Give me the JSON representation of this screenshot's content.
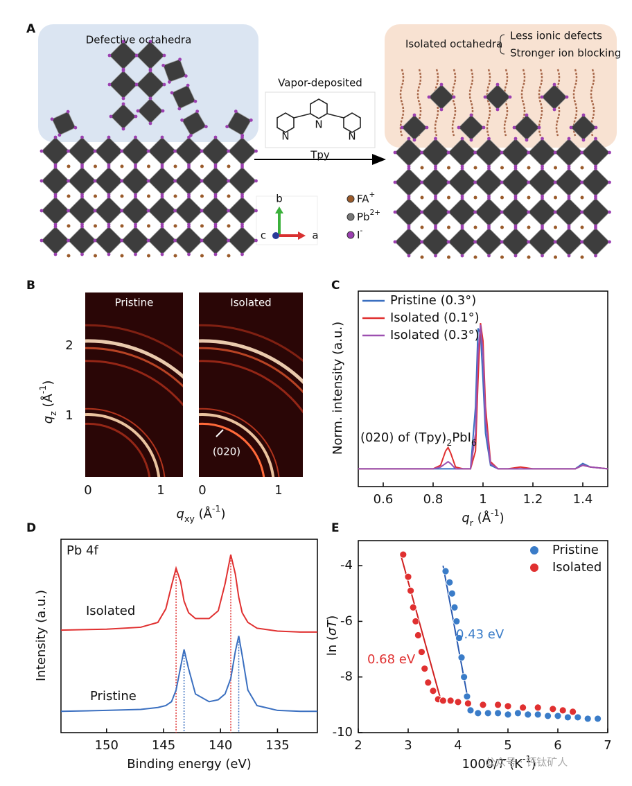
{
  "panel_labels": [
    "A",
    "B",
    "C",
    "D",
    "E"
  ],
  "panel_a": {
    "defective_label": "Defective octahedra",
    "process_label": "Vapor-deposited",
    "molecule_name": "Tpy",
    "atom_labels": [
      "N",
      "N",
      "N"
    ],
    "isolated_label": "Isolated octahedra",
    "benefits": [
      "Less ionic defects",
      "Stronger ion blocking"
    ],
    "axes": [
      "b",
      "c",
      "a"
    ],
    "legend": [
      {
        "parts": [
          [
            "FA",
            "normal"
          ],
          [
            "+",
            "sup"
          ]
        ],
        "color": "#9a5a2a"
      },
      {
        "parts": [
          [
            "Pb",
            "normal"
          ],
          [
            "2+",
            "sup"
          ]
        ],
        "color": "#777777"
      },
      {
        "parts": [
          [
            "I",
            "normal"
          ],
          [
            "-",
            "sup"
          ]
        ],
        "color": "#9b3fb0"
      }
    ]
  },
  "panel_b": {
    "images": [
      "Pristine",
      "Isolated"
    ],
    "annotation": "(020)",
    "xticks": [
      0,
      1
    ],
    "yticks": [
      1,
      2
    ],
    "xlabel": [
      [
        "q",
        "italic"
      ],
      [
        "xy",
        "sub"
      ],
      [
        " (Å",
        "normal"
      ],
      [
        "-1",
        "sup"
      ],
      [
        ")",
        "normal"
      ]
    ],
    "ylabel": [
      [
        "q",
        "italic"
      ],
      [
        "z",
        "sub"
      ],
      [
        " (Å",
        "normal"
      ],
      [
        "-1",
        "sup"
      ],
      [
        ")",
        "normal"
      ]
    ]
  },
  "chart_data": [
    {
      "type": "line",
      "xlabel": [
        [
          "q",
          "italic"
        ],
        [
          "r",
          "sub"
        ],
        [
          " (Å",
          "normal"
        ],
        [
          "-1",
          "sup"
        ],
        [
          ")",
          "normal"
        ]
      ],
      "ylabel": [
        [
          "Norm. intensity (a.u.)",
          "normal"
        ]
      ],
      "annotation": [
        [
          "(020) of (Tpy)",
          "normal"
        ],
        [
          "2",
          "sub"
        ],
        [
          "PbI",
          "normal"
        ],
        [
          "6",
          "sub"
        ]
      ],
      "xlim": [
        0.5,
        1.5
      ],
      "xticks": [
        0.6,
        0.8,
        1.0,
        1.2,
        1.4
      ],
      "ylim": [
        0,
        1.1
      ],
      "x": [
        0.5,
        0.6,
        0.7,
        0.8,
        0.83,
        0.85,
        0.86,
        0.87,
        0.89,
        0.92,
        0.95,
        0.97,
        0.98,
        0.99,
        1.0,
        1.01,
        1.03,
        1.06,
        1.1,
        1.15,
        1.2,
        1.3,
        1.37,
        1.4,
        1.43,
        1.5
      ],
      "legend": "upper left",
      "series": [
        {
          "name": "Pristine (0.3°)",
          "color": "#3a6fc0",
          "values": [
            0.1,
            0.1,
            0.1,
            0.1,
            0.1,
            0.1,
            0.1,
            0.1,
            0.1,
            0.1,
            0.1,
            0.45,
            0.89,
            0.86,
            0.6,
            0.3,
            0.12,
            0.1,
            0.1,
            0.1,
            0.1,
            0.1,
            0.1,
            0.13,
            0.11,
            0.1
          ]
        },
        {
          "name": "Isolated (0.1°)",
          "color": "#e03030",
          "values": [
            0.1,
            0.1,
            0.1,
            0.1,
            0.12,
            0.2,
            0.22,
            0.19,
            0.11,
            0.1,
            0.1,
            0.2,
            0.6,
            0.92,
            0.82,
            0.45,
            0.14,
            0.1,
            0.1,
            0.11,
            0.1,
            0.1,
            0.1,
            0.12,
            0.11,
            0.1
          ]
        },
        {
          "name": "Isolated (0.3°)",
          "color": "#9c4fb0",
          "values": [
            0.1,
            0.1,
            0.1,
            0.1,
            0.11,
            0.13,
            0.14,
            0.13,
            0.1,
            0.1,
            0.1,
            0.3,
            0.75,
            0.91,
            0.75,
            0.38,
            0.13,
            0.1,
            0.1,
            0.1,
            0.1,
            0.1,
            0.1,
            0.12,
            0.11,
            0.1
          ]
        }
      ]
    },
    {
      "type": "line",
      "xlabel": [
        [
          "Binding energy (eV)",
          "normal"
        ]
      ],
      "ylabel": [
        [
          "Intensity (a.u.)",
          "normal"
        ]
      ],
      "annotations": [
        "Pb 4f",
        "Isolated",
        "Pristine"
      ],
      "xlim": [
        154,
        131.5
      ],
      "xticks": [
        150,
        145,
        140,
        135
      ],
      "ylim": [
        0,
        1
      ],
      "x": [
        154,
        150,
        147,
        145.5,
        144.8,
        144.3,
        143.9,
        143.5,
        143.2,
        142.8,
        142.2,
        141,
        140.2,
        139.6,
        139.1,
        138.7,
        138.4,
        138.1,
        137.6,
        136.8,
        135,
        133,
        131.5
      ],
      "series": [
        {
          "name": "Isolated",
          "color": "#e03030",
          "values": [
            0.53,
            0.535,
            0.545,
            0.57,
            0.64,
            0.76,
            0.85,
            0.78,
            0.68,
            0.62,
            0.59,
            0.59,
            0.63,
            0.77,
            0.92,
            0.82,
            0.7,
            0.62,
            0.57,
            0.54,
            0.525,
            0.52,
            0.52
          ]
        },
        {
          "name": "Pristine",
          "color": "#3a6fc0",
          "values": [
            0.11,
            0.115,
            0.12,
            0.13,
            0.14,
            0.16,
            0.22,
            0.34,
            0.43,
            0.33,
            0.2,
            0.16,
            0.17,
            0.2,
            0.28,
            0.42,
            0.5,
            0.4,
            0.22,
            0.14,
            0.115,
            0.11,
            0.11
          ]
        }
      ],
      "peak_lines": [
        {
          "x": 143.9,
          "top": 0.85,
          "color": "#e03030"
        },
        {
          "x": 139.1,
          "top": 0.92,
          "color": "#e03030"
        },
        {
          "x": 143.2,
          "top": 0.43,
          "color": "#3a6fc0"
        },
        {
          "x": 138.4,
          "top": 0.5,
          "color": "#3a6fc0"
        }
      ]
    },
    {
      "type": "scatter",
      "xlabel": [
        [
          "1000/",
          "normal"
        ],
        [
          "T",
          "italic"
        ],
        [
          " (K",
          "normal"
        ],
        [
          "-1",
          "sup"
        ],
        [
          ")",
          "normal"
        ]
      ],
      "ylabel": [
        [
          "ln (",
          "normal"
        ],
        [
          "σT",
          "italic"
        ],
        [
          ")",
          "normal"
        ]
      ],
      "annotations": [
        "0.43 eV",
        "0.68 eV"
      ],
      "xlim": [
        2,
        7
      ],
      "xticks": [
        2,
        3,
        4,
        5,
        6,
        7
      ],
      "ylim": [
        -10,
        -3.1
      ],
      "yticks": [
        -4,
        -6,
        -8,
        -10
      ],
      "legend": "upper right",
      "series": [
        {
          "name": "Pristine",
          "color": "#3a7cc8",
          "x": [
            3.75,
            3.83,
            3.88,
            3.93,
            3.97,
            4.02,
            4.07,
            4.12,
            4.18,
            4.25,
            4.4,
            4.6,
            4.8,
            5.0,
            5.2,
            5.4,
            5.6,
            5.8,
            6.0,
            6.2,
            6.4,
            6.6,
            6.8
          ],
          "values": [
            -4.2,
            -4.6,
            -5.0,
            -5.5,
            -6.0,
            -6.6,
            -7.3,
            -8.0,
            -8.7,
            -9.2,
            -9.3,
            -9.3,
            -9.3,
            -9.35,
            -9.3,
            -9.35,
            -9.35,
            -9.4,
            -9.4,
            -9.45,
            -9.45,
            -9.5,
            -9.5
          ]
        },
        {
          "name": "Isolated",
          "color": "#e03030",
          "x": [
            2.9,
            3.0,
            3.05,
            3.1,
            3.15,
            3.2,
            3.27,
            3.33,
            3.4,
            3.5,
            3.6,
            3.7,
            3.85,
            4.0,
            4.2,
            4.5,
            4.8,
            5.0,
            5.3,
            5.6,
            5.9,
            6.1,
            6.3
          ],
          "values": [
            -3.6,
            -4.4,
            -4.9,
            -5.5,
            -6.0,
            -6.5,
            -7.1,
            -7.7,
            -8.2,
            -8.5,
            -8.8,
            -8.85,
            -8.85,
            -8.9,
            -8.95,
            -9.0,
            -9.0,
            -9.05,
            -9.1,
            -9.1,
            -9.15,
            -9.2,
            -9.25
          ]
        }
      ],
      "fits": [
        {
          "color": "#2a5ab0",
          "x": [
            3.7,
            4.25
          ],
          "values": [
            -4.0,
            -9.3
          ]
        },
        {
          "color": "#d02020",
          "x": [
            2.85,
            3.65
          ],
          "values": [
            -3.6,
            -8.8
          ]
        }
      ]
    }
  ],
  "watermark": "公众号 · 钙钛矿人"
}
